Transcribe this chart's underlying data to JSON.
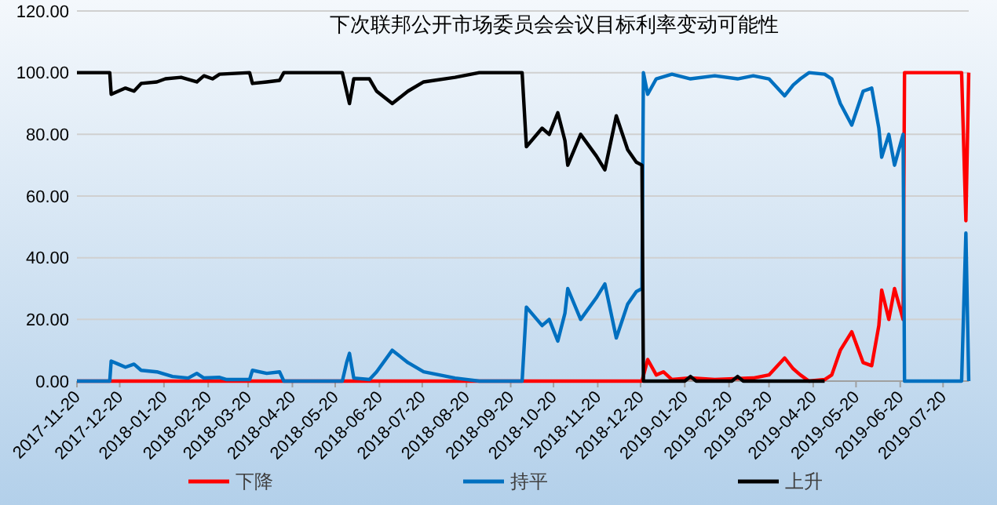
{
  "chart_data": {
    "type": "line",
    "title": "下次联邦公开市场委员会会议目标利率变动可能性",
    "ylim": [
      0,
      120
    ],
    "yticks": [
      {
        "value": 0,
        "label": "0.00"
      },
      {
        "value": 20,
        "label": "20.00"
      },
      {
        "value": 40,
        "label": "40.00"
      },
      {
        "value": 60,
        "label": "60.00"
      },
      {
        "value": 80,
        "label": "80.00"
      },
      {
        "value": 100,
        "label": "100.00"
      },
      {
        "value": 120,
        "label": "120.00"
      }
    ],
    "xlim": [
      "2017-11-20",
      "2019-08-07"
    ],
    "xticks": [
      "2017-11-20",
      "2017-12-20",
      "2018-01-20",
      "2018-02-20",
      "2018-03-20",
      "2018-04-20",
      "2018-05-20",
      "2018-06-20",
      "2018-07-20",
      "2018-08-20",
      "2018-09-20",
      "2018-10-20",
      "2018-11-20",
      "2018-12-20",
      "2019-01-20",
      "2019-02-20",
      "2019-03-20",
      "2019-04-20",
      "2019-05-20",
      "2019-06-20",
      "2019-07-20"
    ],
    "grid": "y",
    "legend": "bottom",
    "line_style": "solid",
    "series": [
      {
        "name": "下降",
        "color": "#ff0000",
        "x": [
          "2017-11-20",
          "2018-12-21",
          "2018-12-25",
          "2018-12-31",
          "2019-01-05",
          "2019-01-11",
          "2019-01-24",
          "2019-02-10",
          "2019-03-09",
          "2019-03-20",
          "2019-03-31",
          "2019-04-06",
          "2019-04-11",
          "2019-04-17",
          "2019-04-28",
          "2019-05-03",
          "2019-05-09",
          "2019-05-17",
          "2019-05-25",
          "2019-05-31",
          "2019-06-05",
          "2019-06-07",
          "2019-06-12",
          "2019-06-16",
          "2019-06-22",
          "2019-06-23",
          "2019-08-02",
          "2019-08-05",
          "2019-08-07"
        ],
        "values": [
          0,
          0,
          7,
          2,
          3,
          0.5,
          1,
          0.5,
          1,
          2,
          7.5,
          4,
          2,
          0,
          0.5,
          2,
          10,
          16,
          6,
          5,
          18,
          29.5,
          20,
          30,
          20,
          100,
          100,
          52,
          100
        ]
      },
      {
        "name": "持平",
        "color": "#0070c0",
        "x": [
          "2017-11-20",
          "2017-12-13",
          "2017-12-14",
          "2017-12-19",
          "2017-12-24",
          "2017-12-30",
          "2018-01-04",
          "2018-01-15",
          "2018-01-26",
          "2018-02-06",
          "2018-02-12",
          "2018-02-17",
          "2018-02-28",
          "2018-03-05",
          "2018-03-21",
          "2018-03-23",
          "2018-04-02",
          "2018-04-11",
          "2018-04-14",
          "2018-05-25",
          "2018-05-28",
          "2018-05-30",
          "2018-06-02",
          "2018-06-13",
          "2018-06-18",
          "2018-06-29",
          "2018-07-10",
          "2018-07-21",
          "2018-08-12",
          "2018-08-29",
          "2018-09-28",
          "2018-10-01",
          "2018-10-12",
          "2018-10-17",
          "2018-10-23",
          "2018-10-28",
          "2018-10-30",
          "2018-11-08",
          "2018-11-19",
          "2018-11-25",
          "2018-12-03",
          "2018-12-11",
          "2018-12-17",
          "2018-12-21",
          "2018-12-22",
          "2018-12-25",
          "2018-12-31",
          "2019-01-11",
          "2019-01-24",
          "2019-02-10",
          "2019-02-26",
          "2019-03-09",
          "2019-03-20",
          "2019-03-31",
          "2019-04-06",
          "2019-04-11",
          "2019-04-17",
          "2019-04-28",
          "2019-05-03",
          "2019-05-09",
          "2019-05-17",
          "2019-05-25",
          "2019-05-31",
          "2019-06-05",
          "2019-06-07",
          "2019-06-12",
          "2019-06-16",
          "2019-06-22",
          "2019-06-23",
          "2019-08-02",
          "2019-08-05",
          "2019-08-07"
        ],
        "values": [
          0,
          0,
          6.5,
          5.5,
          4.5,
          5.5,
          3.5,
          3,
          1.5,
          1,
          2.5,
          1,
          1.2,
          0.5,
          0.5,
          3.5,
          2.5,
          3,
          0,
          0,
          6,
          9,
          1,
          0.5,
          3,
          10,
          6,
          3,
          1,
          0,
          0,
          24,
          18,
          20,
          13,
          22,
          30,
          20,
          27,
          31.5,
          14,
          25,
          29,
          30,
          100,
          93,
          98,
          99.5,
          98,
          99,
          98,
          99,
          98,
          92.5,
          96,
          98,
          100,
          99.5,
          98,
          90,
          83,
          94,
          95,
          82,
          72.6,
          80,
          70,
          80,
          0,
          0,
          48,
          0
        ]
      },
      {
        "name": "上升",
        "color": "#000000",
        "x": [
          "2017-11-20",
          "2017-12-13",
          "2017-12-14",
          "2017-12-19",
          "2017-12-24",
          "2017-12-30",
          "2018-01-04",
          "2018-01-15",
          "2018-01-21",
          "2018-02-01",
          "2018-02-12",
          "2018-02-17",
          "2018-02-23",
          "2018-02-28",
          "2018-03-21",
          "2018-03-23",
          "2018-04-02",
          "2018-04-11",
          "2018-04-14",
          "2018-05-25",
          "2018-05-28",
          "2018-05-30",
          "2018-06-02",
          "2018-06-13",
          "2018-06-18",
          "2018-06-29",
          "2018-07-10",
          "2018-07-21",
          "2018-08-12",
          "2018-08-29",
          "2018-09-28",
          "2018-10-01",
          "2018-10-12",
          "2018-10-17",
          "2018-10-23",
          "2018-10-28",
          "2018-10-30",
          "2018-11-08",
          "2018-11-19",
          "2018-11-25",
          "2018-12-03",
          "2018-12-11",
          "2018-12-17",
          "2018-12-21",
          "2018-12-22",
          "2019-01-20",
          "2019-01-24",
          "2019-01-28",
          "2019-02-22",
          "2019-02-26",
          "2019-03-02",
          "2019-04-28"
        ],
        "values": [
          100,
          100,
          93,
          94,
          95,
          94,
          96.5,
          97,
          98,
          98.5,
          97,
          99,
          98,
          99.5,
          100,
          96.5,
          97,
          97.5,
          100,
          100,
          94,
          90,
          98,
          98,
          94,
          90,
          94,
          97,
          98.5,
          100,
          100,
          76,
          82,
          80,
          87,
          78,
          70,
          80,
          73,
          68.5,
          86,
          75,
          71,
          70,
          0,
          0,
          1.5,
          0,
          0,
          1.5,
          0,
          0
        ]
      }
    ]
  }
}
